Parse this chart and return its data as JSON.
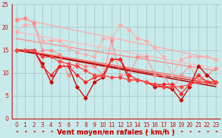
{
  "bg_color": "#c8eaea",
  "grid_color": "#aacccc",
  "xlabel": "Vent moyen/en rafales ( km/h )",
  "xlim": [
    -0.5,
    23.5
  ],
  "ylim": [
    0,
    25
  ],
  "xticks": [
    0,
    1,
    2,
    3,
    4,
    5,
    6,
    7,
    8,
    9,
    10,
    11,
    12,
    13,
    14,
    15,
    16,
    17,
    18,
    19,
    20,
    21,
    22,
    23
  ],
  "yticks": [
    0,
    5,
    10,
    15,
    20,
    25
  ],
  "tick_label_fontsize": 5.5,
  "xlabel_fontsize": 7,
  "xlabel_color": "#cc0000",
  "tick_color": "#cc0000",
  "straight_lines": [
    {
      "color": "#ffbbbb",
      "lw": 1.0,
      "y0": 19.0,
      "y1": 11.0
    },
    {
      "color": "#ffaaaa",
      "lw": 1.0,
      "y0": 22.0,
      "y1": 13.0
    },
    {
      "color": "#ff8888",
      "lw": 1.0,
      "y0": 17.5,
      "y1": 10.5
    },
    {
      "color": "#ff6666",
      "lw": 1.0,
      "y0": 15.2,
      "y1": 8.0
    },
    {
      "color": "#dd2222",
      "lw": 1.2,
      "y0": 15.0,
      "y1": 7.5
    },
    {
      "color": "#aa0000",
      "lw": 1.2,
      "y0": 15.0,
      "y1": 7.0
    }
  ],
  "data_series": [
    {
      "color": "#ffaaaa",
      "lw": 0.8,
      "marker": "D",
      "ms": 2.5,
      "y": [
        19.0,
        20.5,
        20.5,
        17.0,
        17.0,
        17.0,
        15.5,
        14.5,
        14.0,
        13.5,
        17.5,
        17.5,
        20.5,
        19.5,
        17.5,
        17.0,
        15.5,
        13.5,
        9.5,
        13.0,
        13.5,
        13.5,
        13.5,
        13.0
      ]
    },
    {
      "color": "#ff8888",
      "lw": 0.8,
      "marker": "D",
      "ms": 2.5,
      "y": [
        21.5,
        22.0,
        21.0,
        15.0,
        15.0,
        14.0,
        9.5,
        12.0,
        11.5,
        11.5,
        9.5,
        17.0,
        9.5,
        9.5,
        13.5,
        13.5,
        9.5,
        9.5,
        6.5,
        9.5,
        11.5,
        8.5,
        9.5,
        11.0
      ]
    },
    {
      "color": "#cc0000",
      "lw": 1.0,
      "marker": "D",
      "ms": 2.5,
      "y": [
        15.0,
        15.0,
        15.0,
        12.0,
        8.0,
        11.5,
        11.5,
        7.0,
        4.5,
        8.0,
        9.0,
        13.0,
        13.0,
        8.5,
        8.5,
        8.0,
        7.0,
        7.0,
        6.5,
        4.0,
        7.0,
        11.5,
        9.5,
        8.0
      ]
    },
    {
      "color": "#ff2222",
      "lw": 1.0,
      "marker": "D",
      "ms": 2.5,
      "y": [
        15.0,
        15.0,
        15.0,
        11.5,
        9.5,
        11.5,
        11.5,
        9.5,
        8.0,
        9.0,
        9.5,
        13.0,
        13.0,
        9.5,
        8.5,
        8.0,
        7.5,
        7.5,
        7.5,
        5.5,
        7.5,
        9.5,
        8.0,
        8.0
      ]
    },
    {
      "color": "#ff4444",
      "lw": 1.0,
      "marker": "D",
      "ms": 2.5,
      "y": [
        15.0,
        15.0,
        15.0,
        13.5,
        13.5,
        12.5,
        12.0,
        11.5,
        10.5,
        9.5,
        9.5,
        9.0,
        9.0,
        8.5,
        8.5,
        8.0,
        7.5,
        7.0,
        7.0,
        7.0,
        7.5,
        8.0,
        8.0,
        8.0
      ]
    }
  ]
}
